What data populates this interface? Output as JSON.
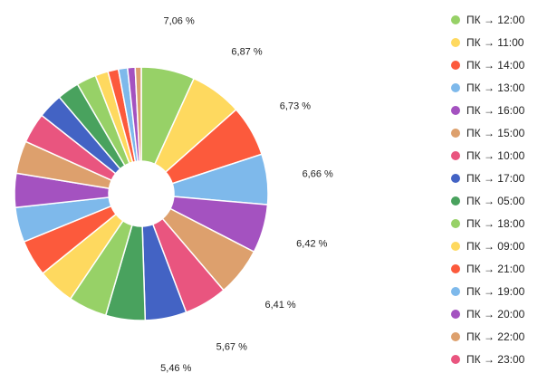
{
  "chart_data": {
    "type": "pie",
    "donut": true,
    "legend_position": "right",
    "slices": [
      {
        "name": "ПК → 12:00",
        "value": 7.06,
        "label": "7,06 %",
        "color": "#97d167"
      },
      {
        "name": "ПК → 11:00",
        "value": 6.87,
        "label": "6,87 %",
        "color": "#fed95f"
      },
      {
        "name": "ПК → 14:00",
        "value": 6.73,
        "label": "6,73 %",
        "color": "#fc5a3c"
      },
      {
        "name": "ПК → 13:00",
        "value": 6.66,
        "label": "6,66 %",
        "color": "#7eb9eb"
      },
      {
        "name": "ПК → 16:00",
        "value": 6.42,
        "label": "6,42 %",
        "color": "#a452c0"
      },
      {
        "name": "ПК → 15:00",
        "value": 6.41,
        "label": "6,41 %",
        "color": "#dda06d"
      },
      {
        "name": "ПК → 10:00",
        "value": 5.67,
        "label": "5,67 %",
        "color": "#e9557f"
      },
      {
        "name": "ПК → 17:00",
        "value": 5.46,
        "label": "5,46 %",
        "color": "#4363c4"
      },
      {
        "name": "ПК → 05:00",
        "value": 5.2,
        "color": "#49a25e"
      },
      {
        "name": "ПК → 18:00",
        "value": 5.1,
        "color": "#97d167"
      },
      {
        "name": "ПК → 09:00",
        "value": 4.9,
        "color": "#fed95f"
      },
      {
        "name": "ПК → 21:00",
        "value": 4.8,
        "color": "#fc5a3c"
      },
      {
        "name": "ПК → 19:00",
        "value": 4.6,
        "color": "#7eb9eb"
      },
      {
        "name": "ПК → 20:00",
        "value": 4.5,
        "color": "#a452c0"
      },
      {
        "name": "ПК → 22:00",
        "value": 4.3,
        "color": "#dda06d"
      },
      {
        "name": "ПК → 23:00",
        "value": 4.0,
        "color": "#e9557f"
      },
      {
        "value": 3.3,
        "color": "#4363c4"
      },
      {
        "value": 2.9,
        "color": "#49a25e"
      },
      {
        "value": 2.6,
        "color": "#97d167"
      },
      {
        "value": 1.7,
        "color": "#fed95f"
      },
      {
        "value": 1.4,
        "color": "#fc5a3c"
      },
      {
        "value": 1.2,
        "color": "#7eb9eb"
      },
      {
        "value": 1.0,
        "color": "#a452c0"
      },
      {
        "value": 0.8,
        "color": "#dda06d"
      }
    ]
  }
}
